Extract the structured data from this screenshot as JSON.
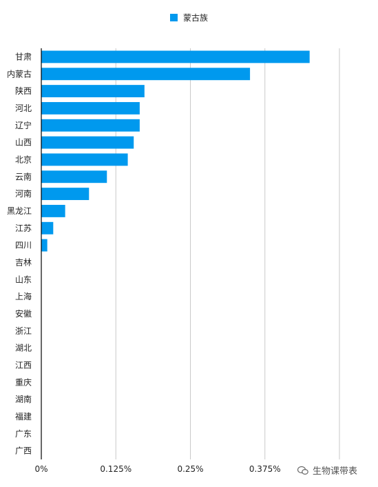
{
  "chart_data": {
    "type": "bar",
    "orientation": "horizontal",
    "categories": [
      "甘肃",
      "内蒙古",
      "陕西",
      "河北",
      "辽宁",
      "山西",
      "北京",
      "云南",
      "河南",
      "黑龙江",
      "江苏",
      "四川",
      "吉林",
      "山东",
      "上海",
      "安徽",
      "浙江",
      "湖北",
      "江西",
      "重庆",
      "湖南",
      "福建",
      "广东",
      "广西"
    ],
    "series": [
      {
        "name": "蒙古族",
        "values": [
          0.45,
          0.35,
          0.173,
          0.165,
          0.165,
          0.155,
          0.145,
          0.11,
          0.08,
          0.04,
          0.02,
          0.01,
          0,
          0,
          0,
          0,
          0,
          0,
          0,
          0,
          0,
          0,
          0,
          0
        ]
      }
    ],
    "xlim": [
      0,
      0.5
    ],
    "x_ticks": [
      0,
      0.125,
      0.25,
      0.375
    ],
    "x_tick_labels": [
      "0%",
      "0.125%",
      "0.25%",
      "0.375%"
    ],
    "grid": true,
    "legend_position": "top-center",
    "colors": {
      "bar": "#0099ee",
      "grid": "#c8c8c8",
      "axis": "#000000"
    }
  },
  "watermark": {
    "text": "生物课带表",
    "icon": "wechat-icon"
  }
}
